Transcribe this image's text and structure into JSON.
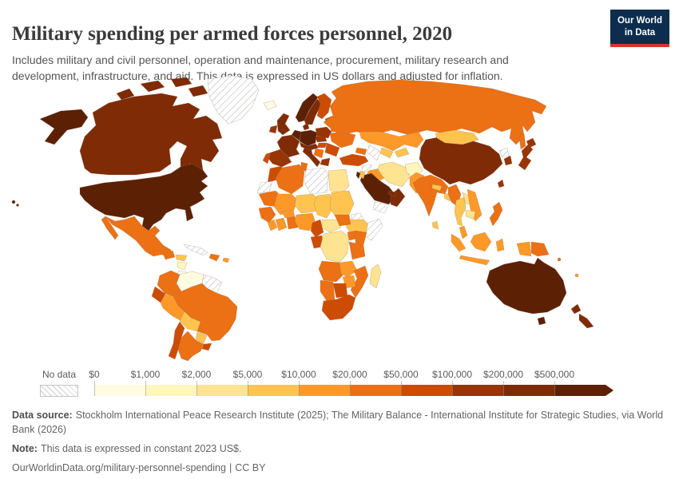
{
  "header": {
    "title": "Military spending per armed forces personnel, 2020",
    "subtitle": "Includes military and civil personnel, operation and maintenance, procurement, military research and development, infrastructure, and aid. This data is expressed in US dollars and adjusted for inflation."
  },
  "logo": {
    "line1": "Our World",
    "line2": "in Data",
    "bg_color": "#0c2d4e",
    "accent_color": "#d8352e"
  },
  "legend": {
    "no_data_label": "No data",
    "tick_labels": [
      "$0",
      "$1,000",
      "$2,000",
      "$5,000",
      "$10,000",
      "$20,000",
      "$50,000",
      "$100,000",
      "$200,000",
      "$500,000"
    ],
    "bin_colors": [
      "#fffbe1",
      "#fff6bc",
      "#fee391",
      "#fec44f",
      "#fe9929",
      "#ec7014",
      "#cc4c02",
      "#993404",
      "#7f2b05",
      "#5c2005"
    ]
  },
  "footer": {
    "source_label": "Data source:",
    "source_text": "Stockholm International Peace Research Institute (2025); The Military Balance - International Institute for Strategic Studies, via World Bank (2026)",
    "note_label": "Note:",
    "note_text": "This data is expressed in constant 2023 US$.",
    "link": "OurWorldinData.org/military-personnel-spending",
    "separator": "|",
    "license": "CC BY"
  },
  "chart_data": {
    "type": "choropleth",
    "title": "Military spending per armed forces personnel, 2020",
    "unit": "constant 2023 US$ per armed forces personnel",
    "legend_position": "bottom",
    "bin_edges": [
      "$0",
      "$1,000",
      "$2,000",
      "$5,000",
      "$10,000",
      "$20,000",
      "$50,000",
      "$100,000",
      "$200,000",
      "$500,000",
      ">$500,000"
    ],
    "countries": {
      "united-states": 9,
      "canada": 8,
      "greenland": "no-data",
      "iceland": 0,
      "mexico": 5,
      "guatemala": 5,
      "honduras": 3,
      "nicaragua": 1,
      "costa-rica": 0,
      "panama": 2,
      "cuba": "no-data",
      "hispaniola": 5,
      "puerto-rico": 4,
      "colombia": 5,
      "venezuela": 0,
      "guyanas": "no-data",
      "ecuador": 6,
      "peru": 4,
      "brazil": 5,
      "bolivia": 3,
      "paraguay": 3,
      "chile": 6,
      "argentina": 5,
      "uruguay": 6,
      "united-kingdom": 8,
      "ireland": 7,
      "norway": 9,
      "sweden": 8,
      "finland": 6,
      "denmark": 8,
      "germany": 9,
      "benelux": 9,
      "france": 8,
      "spain": 7,
      "portugal": 6,
      "italy": 8,
      "alpine": 8,
      "czech-slovakia": 7,
      "poland": 7,
      "baltics": 6,
      "belarus": 5,
      "ukraine": 5,
      "romania-bulgaria": 6,
      "hungary": 6,
      "balkans": 5,
      "greece": 7,
      "russia": 5,
      "kazakhstan": 4,
      "uzbekistan": 3,
      "turkmenistan": "no-data",
      "kyrgyz-tajik": 3,
      "caucasus": 5,
      "turkey": 6,
      "syria": "no-data",
      "iraq": 4,
      "iran": 2,
      "afghanistan": 1,
      "pakistan": 4,
      "saudi-arabia": 9,
      "jordan": 3,
      "israel": 9,
      "yemen": "no-data",
      "oman": 8,
      "uae-qatar": 8,
      "morocco": 6,
      "western-sahara": "no-data",
      "algeria": 5,
      "tunisia": 5,
      "libya": "no-data",
      "egypt": 2,
      "mauritania": 5,
      "mali": 4,
      "niger": 3,
      "chad": 3,
      "sudan": 3,
      "eritrea": "no-data",
      "ethiopia": 3,
      "somalia": "no-data",
      "senegal-guinea": 5,
      "sierra-liberia": 4,
      "ivory-coast": 4,
      "ghana-benin": 5,
      "burkina-faso": 4,
      "nigeria": 4,
      "cameroon": 6,
      "central-african-republic": 2,
      "south-sudan": 5,
      "congo-gabon": 6,
      "dr-congo": 2,
      "uganda": 5,
      "kenya": 5,
      "tanzania": 5,
      "angola": 5,
      "zambia": 4,
      "mozambique": 5,
      "zimbabwe": 4,
      "botswana": 6,
      "namibia": 5,
      "south-africa": 6,
      "madagascar": 2,
      "india": 5,
      "nepal": 3,
      "bangladesh": 3,
      "sri-lanka": 3,
      "china": 8,
      "mongolia": 3,
      "north-korea": "no-data",
      "south-korea": 7,
      "japan": 7,
      "taiwan": 7,
      "myanmar": 5,
      "thailand": 3,
      "laos": 2,
      "vietnam": 4,
      "cambodia": 2,
      "malaysia": 4,
      "indonesia": 4,
      "papua-new-guinea": 5,
      "philippines": 5,
      "fiji": 4,
      "solomon-islands": 5,
      "australia": 9,
      "new-zealand": 8
    }
  }
}
